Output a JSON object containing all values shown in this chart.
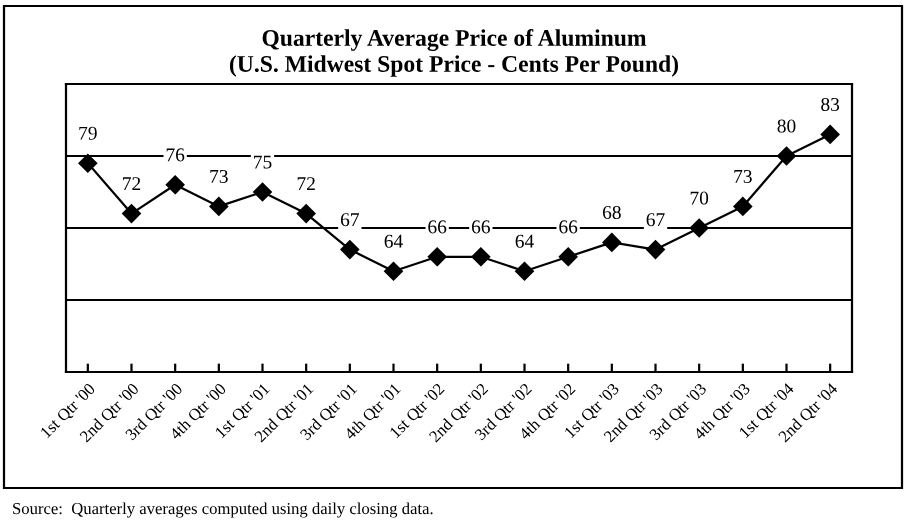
{
  "chart_data": {
    "type": "line",
    "title": "Quarterly Average Price of Aluminum",
    "subtitle": "(U.S. Midwest Spot Price - Cents Per Pound)",
    "categories": [
      "1st Qtr '00",
      "2nd Qtr '00",
      "3rd Qtr '00",
      "4th Qtr '00",
      "1st Qtr '01",
      "2nd Qtr '01",
      "3rd Qtr '01",
      "4th Qtr '01",
      "1st Qtr '02",
      "2nd Qtr '02",
      "3rd Qtr '02",
      "4th Qtr '02",
      "1st Qtr '03",
      "2nd Qtr '03",
      "3rd Qtr '03",
      "4th Qtr '03",
      "1st Qtr '04",
      "2nd Qtr '04"
    ],
    "series": [
      {
        "color": "#000000",
        "values": [
          79,
          72,
          76,
          73,
          75,
          72,
          67,
          64,
          66,
          66,
          64,
          66,
          68,
          67,
          70,
          73,
          80,
          83
        ]
      }
    ],
    "ylim": [
      50,
      90
    ],
    "yticks": [
      {
        "value": 60,
        "label": null
      },
      {
        "value": 70,
        "label": null
      },
      {
        "value": 80,
        "label": null
      }
    ],
    "tick_labels": "x",
    "grid": "y",
    "marker": "diamond",
    "line_style": "solid",
    "data_labels": true,
    "legend": false,
    "annotations": [
      "Source:  Quarterly averages computed using daily closing data."
    ]
  }
}
